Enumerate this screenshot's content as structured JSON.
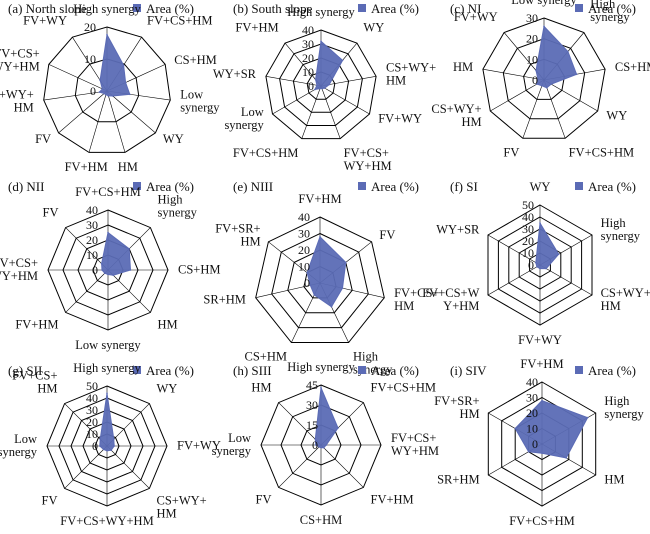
{
  "legend_label": "Area (%)",
  "colors": {
    "series": "#5b6bb5",
    "grid": "#000000"
  },
  "chart_data": [
    {
      "type": "radar",
      "title": "(a) North slope",
      "axes": [
        [
          "High synergy"
        ],
        [
          "FV+CS+HM"
        ],
        [
          "CS+HM"
        ],
        [
          "Low",
          "synergy"
        ],
        [
          "WY"
        ],
        [
          "HM"
        ],
        [
          "FV+HM"
        ],
        [
          "FV"
        ],
        [
          "CS+WY+",
          "HM"
        ],
        [
          "FV+CS+",
          "WY+HM"
        ],
        [
          "FV+WY"
        ]
      ],
      "ticks": [
        "0",
        "10",
        "20"
      ],
      "rmax": 25,
      "series": [
        {
          "values": [
            22,
            12,
            8,
            9,
            3,
            2,
            1.5,
            1.5,
            3,
            2,
            5
          ]
        }
      ]
    },
    {
      "type": "radar",
      "title": "(b) South slope",
      "axes": [
        [
          "High synergy"
        ],
        [
          "WY"
        ],
        [
          "CS+WY+",
          "HM"
        ],
        [
          "FV+WY"
        ],
        [
          "FV+CS+",
          "WY+HM"
        ],
        [
          "FV+CS+HM"
        ],
        [
          "Low",
          "synergy"
        ],
        [
          "WY+SR"
        ],
        [
          "FV+HM"
        ]
      ],
      "ticks": [
        "0",
        "10",
        "20",
        "30",
        "40"
      ],
      "rmax": 40,
      "series": [
        {
          "values": [
            32,
            24,
            6,
            3,
            2,
            2,
            5,
            3,
            6
          ]
        }
      ]
    },
    {
      "type": "radar",
      "title": "(c) NI",
      "axes": [
        [
          "Low synergy"
        ],
        [
          "High",
          "synergy"
        ],
        [
          "CS+HM"
        ],
        [
          "WY"
        ],
        [
          "FV+CS+HM"
        ],
        [
          "FV"
        ],
        [
          "CS+WY+",
          "HM"
        ],
        [
          "HM"
        ],
        [
          "FV+WY"
        ]
      ],
      "ticks": [
        "0",
        "10",
        "20",
        "30"
      ],
      "rmax": 30,
      "series": [
        {
          "values": [
            26,
            18,
            16,
            4,
            4,
            3,
            4,
            3,
            6
          ]
        }
      ]
    },
    {
      "type": "radar",
      "title": "(d) NII",
      "axes": [
        [
          "FV+CS+HM"
        ],
        [
          "High",
          "synergy"
        ],
        [
          "CS+HM"
        ],
        [
          "HM"
        ],
        [
          "Low synergy"
        ],
        [
          "FV+HM"
        ],
        [
          "FV+CS+",
          "WY+HM"
        ],
        [
          "FV"
        ]
      ],
      "ticks": [
        "0",
        "10",
        "20",
        "30",
        "40"
      ],
      "rmax": 40,
      "series": [
        {
          "values": [
            25,
            20,
            15,
            5,
            3,
            3,
            4,
            6
          ]
        }
      ]
    },
    {
      "type": "radar",
      "title": "(e) NIII",
      "axes": [
        [
          "FV+HM"
        ],
        [
          "FV"
        ],
        [
          "FV+CS+",
          "HM"
        ],
        [
          "High",
          "synergy"
        ],
        [
          "CS+HM"
        ],
        [
          "SR+HM"
        ],
        [
          "FV+SR+",
          "HM"
        ]
      ],
      "ticks": [
        "0",
        "10",
        "20",
        "30",
        "40"
      ],
      "rmax": 40,
      "series": [
        {
          "values": [
            28,
            20,
            14,
            16,
            8,
            6,
            10
          ]
        }
      ]
    },
    {
      "type": "radar",
      "title": "(f) SI",
      "axes": [
        [
          "WY"
        ],
        [
          "High",
          "synergy"
        ],
        [
          "CS+WY+",
          "HM"
        ],
        [
          "FV+WY"
        ],
        [
          "FV+CS+W",
          "Y+HM"
        ],
        [
          "WY+SR"
        ]
      ],
      "ticks": [
        "0",
        "10",
        "20",
        "30",
        "40",
        "50"
      ],
      "rmax": 50,
      "series": [
        {
          "values": [
            35,
            18,
            6,
            3,
            3,
            4
          ]
        }
      ]
    },
    {
      "type": "radar",
      "title": "(g) SII",
      "axes": [
        [
          "High synergy"
        ],
        [
          "WY"
        ],
        [
          "FV+WY"
        ],
        [
          "CS+WY+",
          "HM"
        ],
        [
          "FV+CS+WY+HM"
        ],
        [
          "FV"
        ],
        [
          "Low",
          "synergy"
        ],
        [
          "FV+CS+",
          "HM"
        ]
      ],
      "ticks": [
        "0",
        "10",
        "20",
        "30",
        "40",
        "50"
      ],
      "rmax": 50,
      "series": [
        {
          "values": [
            44,
            8,
            6,
            5,
            4,
            4,
            6,
            8
          ]
        }
      ]
    },
    {
      "type": "radar",
      "title": "(h) SIII",
      "axes": [
        [
          "High synergy"
        ],
        [
          "FV+CS+HM"
        ],
        [
          "FV+CS+",
          "WY+HM"
        ],
        [
          "FV+HM"
        ],
        [
          "CS+HM"
        ],
        [
          "FV"
        ],
        [
          "Low",
          "synergy"
        ],
        [
          "HM"
        ]
      ],
      "ticks": [
        "0",
        "15",
        "30",
        "45"
      ],
      "rmax": 45,
      "series": [
        {
          "values": [
            43,
            18,
            4,
            3,
            2,
            2,
            4,
            6
          ]
        }
      ]
    },
    {
      "type": "radar",
      "title": "(i) SIV",
      "axes": [
        [
          "FV+HM"
        ],
        [
          "High",
          "synergy"
        ],
        [
          "HM"
        ],
        [
          "FV+CS+HM"
        ],
        [
          "SR+HM"
        ],
        [
          "FV+SR+",
          "HM"
        ]
      ],
      "ticks": [
        "0",
        "10",
        "20",
        "30",
        "40"
      ],
      "rmax": 40,
      "series": [
        {
          "values": [
            28,
            34,
            18,
            6,
            10,
            20
          ]
        }
      ]
    }
  ]
}
